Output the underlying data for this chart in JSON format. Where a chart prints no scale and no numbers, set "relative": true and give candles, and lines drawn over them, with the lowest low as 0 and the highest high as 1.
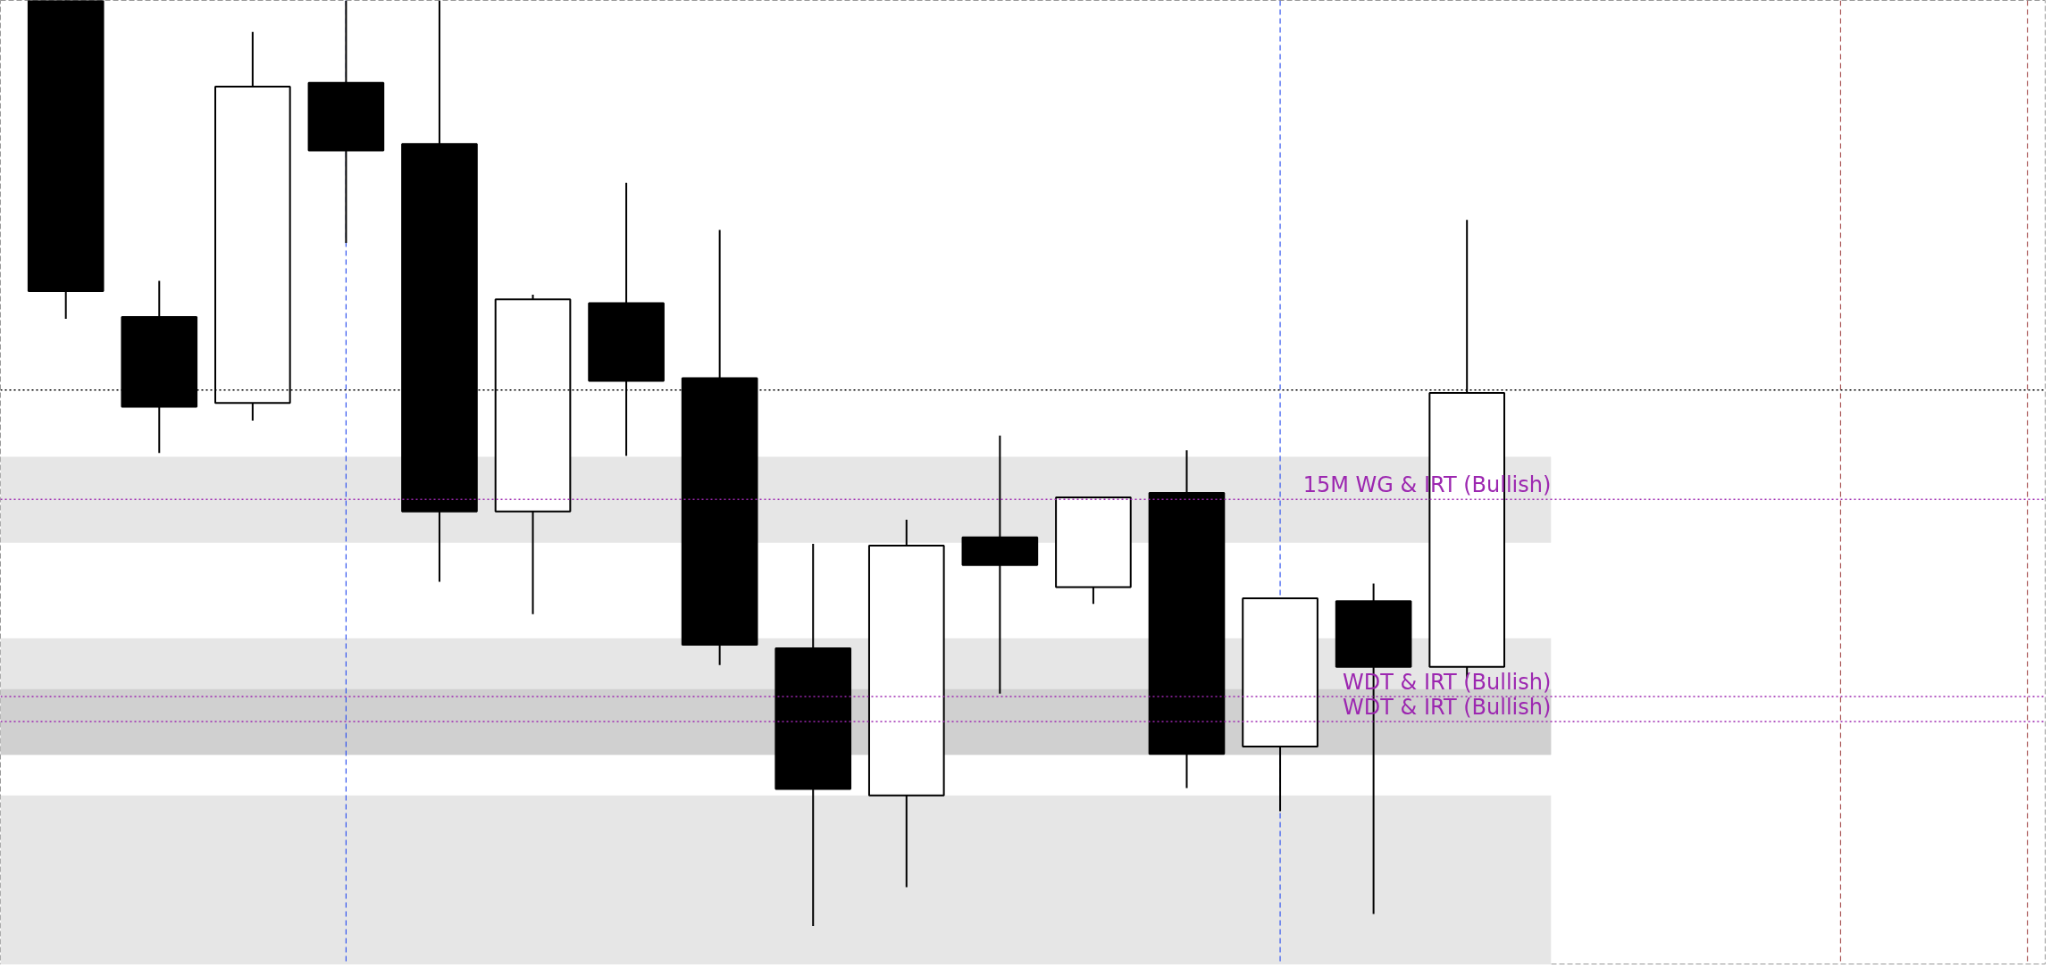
{
  "chart_data": {
    "type": "candlestick",
    "relative": true,
    "categories": [
      null,
      null,
      null,
      null,
      null,
      null,
      null,
      null,
      null,
      null,
      null,
      null,
      null,
      null,
      null,
      null
    ],
    "ohlc": [
      [
        1.0,
        1.0,
        0.656,
        0.686
      ],
      [
        0.658,
        0.697,
        0.511,
        0.561
      ],
      [
        0.565,
        0.966,
        0.546,
        0.907
      ],
      [
        0.911,
        1.0,
        0.738,
        0.838
      ],
      [
        0.845,
        1.0,
        0.372,
        0.448
      ],
      [
        0.448,
        0.682,
        0.337,
        0.677
      ],
      [
        0.673,
        0.803,
        0.508,
        0.589
      ],
      [
        0.592,
        0.752,
        0.282,
        0.304
      ],
      [
        0.3,
        0.413,
        0.0,
        0.148
      ],
      [
        0.141,
        0.439,
        0.042,
        0.411
      ],
      [
        0.42,
        0.53,
        0.251,
        0.39
      ],
      [
        0.366,
        0.463,
        0.348,
        0.463
      ],
      [
        0.468,
        0.514,
        0.149,
        0.186
      ],
      [
        0.194,
        0.354,
        0.124,
        0.354
      ],
      [
        0.351,
        0.37,
        0.013,
        0.28
      ],
      [
        0.28,
        0.763,
        0.268,
        0.576
      ]
    ],
    "bands": [
      {
        "axis": "y",
        "from": 0.414,
        "to": 0.507,
        "color": "#e6e6e6"
      },
      {
        "axis": "y",
        "from": 0.185,
        "to": 0.311,
        "color": "#e6e6e6"
      },
      {
        "axis": "y",
        "from": 0.185,
        "to": 0.256,
        "color": "#d0d0d0"
      },
      {
        "axis": "y",
        "from": -0.042,
        "to": 0.141,
        "color": "#e6e6e6"
      }
    ],
    "ref_lines": [
      {
        "axis": "y",
        "value": 0.579,
        "color": "#000000",
        "line_style": "dotted"
      },
      {
        "axis": "y",
        "value": 0.461,
        "label": "15M WG & IRT (Bullish)",
        "color": "#9c27b0",
        "line_style": "dotted"
      },
      {
        "axis": "y",
        "value": 0.248,
        "label": "WDT & IRT (Bullish)",
        "color": "#9c27b0",
        "line_style": "dotted"
      },
      {
        "axis": "y",
        "value": 0.221,
        "label": "WDT & IRT (Bullish)",
        "color": "#9c27b0",
        "line_style": "dotted"
      }
    ],
    "grid": false
  }
}
